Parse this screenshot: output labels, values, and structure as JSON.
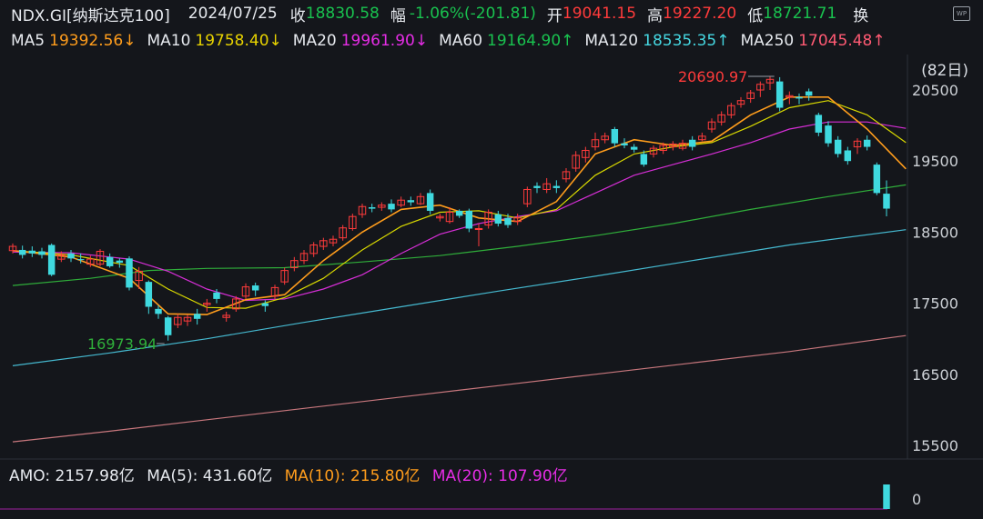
{
  "header": {
    "symbol": "NDX.GI[纳斯达克100]",
    "date": "2024/07/25",
    "close_label": "收",
    "close": "18830.58",
    "change_label": "幅",
    "change": "-1.06%(-201.81)",
    "open_label": "开",
    "open": "19041.15",
    "high_label": "高",
    "high": "19227.20",
    "low_label": "低",
    "low": "18721.71",
    "turnover_label": "换"
  },
  "ma_bar": {
    "ma5": {
      "label": "MA5",
      "value": "19392.56↓"
    },
    "ma10": {
      "label": "MA10",
      "value": "19758.40↓"
    },
    "ma20": {
      "label": "MA20",
      "value": "19961.90↓"
    },
    "ma60": {
      "label": "MA60",
      "value": "19164.90↑"
    },
    "ma120": {
      "label": "MA120",
      "value": "18535.35↑"
    },
    "ma250": {
      "label": "MA250",
      "value": "17045.48↑"
    },
    "period_button": "(82日)"
  },
  "colors": {
    "up": "#ff3b3b",
    "down": "#3fd9df",
    "ma5": "#ff9d1c",
    "ma10": "#d8d800",
    "ma20": "#d62ed6",
    "ma60": "#2fae3a",
    "ma120": "#45b9d0",
    "ma250": "#c8777d",
    "bg": "#14161b"
  },
  "annotations": {
    "high_marker": "20690.97",
    "low_marker": "16973.94"
  },
  "volume_bar": {
    "amo": "AMO: 2157.98亿",
    "ma5": "MA(5): 431.60亿",
    "ma10": "MA(10): 215.80亿",
    "ma20": "MA(20): 107.90亿",
    "axis_zero": "0"
  },
  "chart_data": {
    "type": "candlestick",
    "y_ticks": [
      20500,
      19500,
      18500,
      17500,
      16500,
      15500
    ],
    "ylim": [
      15400,
      21050
    ],
    "candles": [
      [
        18240,
        18300,
        18200,
        18340
      ],
      [
        18250,
        18180,
        18130,
        18310
      ],
      [
        18240,
        18200,
        18150,
        18300
      ],
      [
        18230,
        18180,
        18130,
        18280
      ],
      [
        18320,
        17900,
        17880,
        18340
      ],
      [
        18120,
        18180,
        18080,
        18230
      ],
      [
        18200,
        18130,
        18080,
        18250
      ],
      [
        18120,
        18110,
        18060,
        18200
      ],
      [
        18050,
        18120,
        18010,
        18170
      ],
      [
        18050,
        18230,
        18020,
        18260
      ],
      [
        18150,
        18020,
        18000,
        18200
      ],
      [
        18100,
        18070,
        18000,
        18130
      ],
      [
        18130,
        17720,
        17680,
        18160
      ],
      [
        17820,
        17950,
        17700,
        18010
      ],
      [
        17800,
        17450,
        17350,
        17820
      ],
      [
        17420,
        17350,
        17280,
        17470
      ],
      [
        17300,
        17050,
        16974,
        17320
      ],
      [
        17200,
        17300,
        17150,
        17350
      ],
      [
        17250,
        17300,
        17180,
        17340
      ],
      [
        17350,
        17280,
        17200,
        17420
      ],
      [
        17480,
        17500,
        17380,
        17560
      ],
      [
        17650,
        17560,
        17500,
        17700
      ],
      [
        17300,
        17330,
        17240,
        17380
      ],
      [
        17420,
        17560,
        17380,
        17600
      ],
      [
        17600,
        17730,
        17560,
        17780
      ],
      [
        17750,
        17680,
        17600,
        17790
      ],
      [
        17500,
        17460,
        17380,
        17540
      ],
      [
        17600,
        17720,
        17560,
        17760
      ],
      [
        17800,
        17960,
        17760,
        18000
      ],
      [
        18000,
        18100,
        17950,
        18150
      ],
      [
        18100,
        18200,
        18050,
        18250
      ],
      [
        18200,
        18320,
        18150,
        18360
      ],
      [
        18300,
        18380,
        18250,
        18420
      ],
      [
        18350,
        18400,
        18300,
        18450
      ],
      [
        18420,
        18560,
        18380,
        18600
      ],
      [
        18550,
        18720,
        18520,
        18760
      ],
      [
        18750,
        18860,
        18700,
        18900
      ],
      [
        18850,
        18830,
        18780,
        18900
      ],
      [
        18850,
        18880,
        18800,
        18920
      ],
      [
        18900,
        18820,
        18780,
        18960
      ],
      [
        18880,
        18950,
        18850,
        19000
      ],
      [
        18950,
        18920,
        18870,
        19000
      ],
      [
        18900,
        19000,
        18880,
        19050
      ],
      [
        19050,
        18800,
        18750,
        19100
      ],
      [
        18700,
        18720,
        18650,
        18760
      ],
      [
        18650,
        18780,
        18620,
        18850
      ],
      [
        18800,
        18730,
        18700,
        18820
      ],
      [
        18800,
        18550,
        18500,
        18830
      ],
      [
        18550,
        18550,
        18300,
        18620
      ],
      [
        18600,
        18780,
        18550,
        18820
      ],
      [
        18750,
        18620,
        18580,
        18800
      ],
      [
        18700,
        18600,
        18560,
        18760
      ],
      [
        18650,
        18700,
        18600,
        18760
      ],
      [
        18900,
        19100,
        18850,
        19140
      ],
      [
        19150,
        19120,
        19050,
        19200
      ],
      [
        19100,
        19180,
        19050,
        19260
      ],
      [
        19150,
        19120,
        19050,
        19230
      ],
      [
        19250,
        19350,
        19200,
        19400
      ],
      [
        19400,
        19580,
        19350,
        19640
      ],
      [
        19550,
        19650,
        19480,
        19700
      ],
      [
        19700,
        19800,
        19650,
        19900
      ],
      [
        19800,
        19850,
        19750,
        19900
      ],
      [
        19950,
        19750,
        19700,
        19980
      ],
      [
        19750,
        19720,
        19680,
        19820
      ],
      [
        19700,
        19660,
        19620,
        19740
      ],
      [
        19600,
        19450,
        19420,
        19650
      ],
      [
        19600,
        19680,
        19550,
        19720
      ],
      [
        19650,
        19720,
        19600,
        19760
      ],
      [
        19700,
        19740,
        19650,
        19780
      ],
      [
        19680,
        19750,
        19650,
        19800
      ],
      [
        19800,
        19700,
        19650,
        19850
      ],
      [
        19800,
        19850,
        19780,
        19900
      ],
      [
        19950,
        20050,
        19900,
        20100
      ],
      [
        20050,
        20150,
        20000,
        20200
      ],
      [
        20150,
        20280,
        20100,
        20320
      ],
      [
        20300,
        20350,
        20250,
        20400
      ],
      [
        20380,
        20460,
        20320,
        20500
      ],
      [
        20500,
        20580,
        20400,
        20620
      ],
      [
        20600,
        20650,
        20500,
        20691
      ],
      [
        20620,
        20250,
        20200,
        20680
      ],
      [
        20400,
        20420,
        20300,
        20480
      ],
      [
        20400,
        20380,
        20300,
        20450
      ],
      [
        20480,
        20420,
        20350,
        20520
      ],
      [
        20150,
        19900,
        19850,
        20180
      ],
      [
        20000,
        19750,
        19700,
        20060
      ],
      [
        19800,
        19600,
        19550,
        19850
      ],
      [
        19650,
        19500,
        19450,
        19700
      ],
      [
        19700,
        19780,
        19600,
        19820
      ],
      [
        19800,
        19700,
        19650,
        19860
      ],
      [
        19450,
        19050,
        19020,
        19480
      ],
      [
        19041,
        18831,
        18722,
        19227
      ]
    ],
    "ma_lines": {
      "ma5": [
        [
          0,
          18240
        ],
        [
          6,
          18150
        ],
        [
          12,
          17850
        ],
        [
          16,
          17350
        ],
        [
          20,
          17340
        ],
        [
          24,
          17550
        ],
        [
          28,
          17620
        ],
        [
          32,
          18100
        ],
        [
          36,
          18500
        ],
        [
          40,
          18820
        ],
        [
          44,
          18880
        ],
        [
          48,
          18700
        ],
        [
          52,
          18650
        ],
        [
          56,
          18930
        ],
        [
          60,
          19600
        ],
        [
          64,
          19800
        ],
        [
          68,
          19720
        ],
        [
          72,
          19780
        ],
        [
          76,
          20150
        ],
        [
          80,
          20400
        ],
        [
          84,
          20400
        ],
        [
          88,
          19950
        ],
        [
          92,
          19390
        ]
      ],
      "ma10": [
        [
          0,
          18240
        ],
        [
          6,
          18180
        ],
        [
          12,
          18030
        ],
        [
          16,
          17700
        ],
        [
          20,
          17440
        ],
        [
          24,
          17430
        ],
        [
          28,
          17580
        ],
        [
          32,
          17850
        ],
        [
          36,
          18250
        ],
        [
          40,
          18580
        ],
        [
          44,
          18780
        ],
        [
          48,
          18800
        ],
        [
          52,
          18700
        ],
        [
          56,
          18820
        ],
        [
          60,
          19300
        ],
        [
          64,
          19600
        ],
        [
          68,
          19700
        ],
        [
          72,
          19760
        ],
        [
          76,
          19990
        ],
        [
          80,
          20250
        ],
        [
          84,
          20350
        ],
        [
          88,
          20150
        ],
        [
          92,
          19760
        ]
      ],
      "ma20": [
        [
          0,
          18220
        ],
        [
          6,
          18210
        ],
        [
          12,
          18120
        ],
        [
          16,
          17950
        ],
        [
          20,
          17700
        ],
        [
          24,
          17540
        ],
        [
          28,
          17560
        ],
        [
          32,
          17700
        ],
        [
          36,
          17900
        ],
        [
          40,
          18200
        ],
        [
          44,
          18470
        ],
        [
          48,
          18620
        ],
        [
          52,
          18720
        ],
        [
          56,
          18800
        ],
        [
          60,
          19050
        ],
        [
          64,
          19300
        ],
        [
          68,
          19450
        ],
        [
          72,
          19600
        ],
        [
          76,
          19760
        ],
        [
          80,
          19950
        ],
        [
          84,
          20050
        ],
        [
          88,
          20050
        ],
        [
          92,
          19960
        ]
      ],
      "ma60": [
        [
          0,
          17750
        ],
        [
          8,
          17850
        ],
        [
          14,
          17960
        ],
        [
          20,
          17990
        ],
        [
          28,
          18000
        ],
        [
          36,
          18080
        ],
        [
          44,
          18170
        ],
        [
          52,
          18300
        ],
        [
          60,
          18450
        ],
        [
          68,
          18620
        ],
        [
          76,
          18820
        ],
        [
          84,
          19000
        ],
        [
          92,
          19165
        ]
      ],
      "ma120": [
        [
          0,
          16620
        ],
        [
          10,
          16800
        ],
        [
          20,
          17000
        ],
        [
          30,
          17230
        ],
        [
          40,
          17450
        ],
        [
          50,
          17670
        ],
        [
          60,
          17880
        ],
        [
          70,
          18100
        ],
        [
          80,
          18320
        ],
        [
          92,
          18535
        ]
      ],
      "ma250": [
        [
          0,
          15550
        ],
        [
          10,
          15700
        ],
        [
          20,
          15860
        ],
        [
          30,
          16020
        ],
        [
          40,
          16180
        ],
        [
          50,
          16340
        ],
        [
          60,
          16500
        ],
        [
          70,
          16660
        ],
        [
          80,
          16820
        ],
        [
          92,
          17045
        ]
      ]
    },
    "volume": {
      "last_value": "2157.98亿",
      "axis": [
        0
      ]
    }
  }
}
